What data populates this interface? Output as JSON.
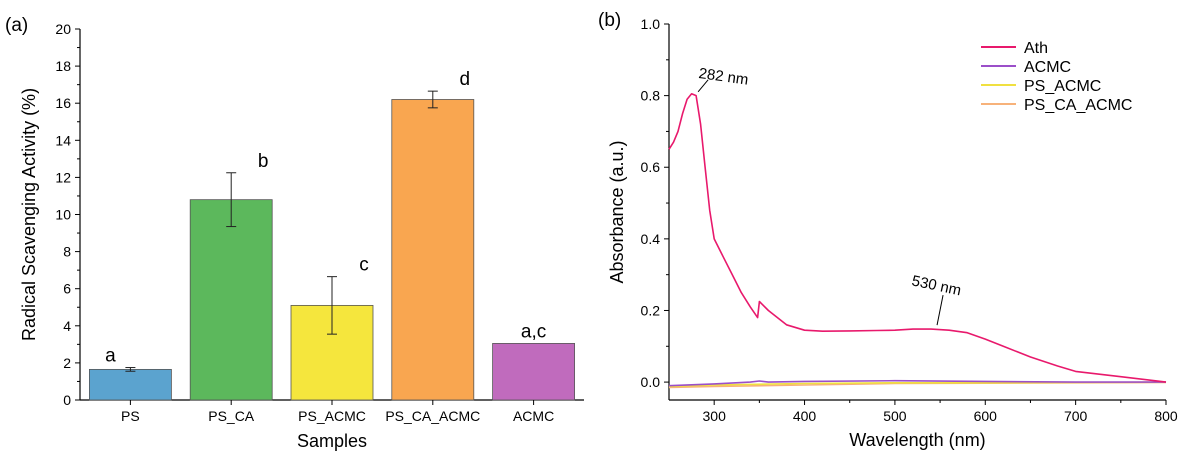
{
  "chart_data": [
    {
      "panel_label": "(a)",
      "type": "bar",
      "xlabel": "Samples",
      "ylabel": "Radical Scavenging Activity (%)",
      "ylim": [
        0,
        20
      ],
      "yticks": [
        0,
        2,
        4,
        6,
        8,
        10,
        12,
        14,
        16,
        18,
        20
      ],
      "categories": [
        "PS",
        "PS_CA",
        "PS_ACMC",
        "PS_CA_ACMC",
        "ACMC"
      ],
      "values": [
        1.65,
        10.8,
        5.1,
        16.2,
        3.05
      ],
      "errors": [
        0.1,
        1.45,
        1.55,
        0.45,
        0.0
      ],
      "significance_letters": [
        "a",
        "b",
        "c",
        "d",
        "a,c"
      ],
      "colors": [
        "#5ba3cf",
        "#5cb85c",
        "#f5e63d",
        "#f9a650",
        "#c06bbd"
      ],
      "grid": false
    },
    {
      "panel_label": "(b)",
      "type": "line",
      "xlabel": "Wavelength (nm)",
      "ylabel": "Absorbance (a.u.)",
      "xlim": [
        250,
        800
      ],
      "ylim": [
        -0.05,
        1.0
      ],
      "xticks": [
        300,
        400,
        500,
        600,
        700,
        800
      ],
      "yticks": [
        0.0,
        0.2,
        0.4,
        0.6,
        0.8,
        1.0
      ],
      "ytick_labels": [
        "0.0",
        "0.2",
        "0.4",
        "0.6",
        "0.8",
        "1.0"
      ],
      "legend_position": "top-right",
      "grid": false,
      "annotations": [
        {
          "text": "282 nm",
          "x": 280,
          "y": 0.805
        },
        {
          "text": "530 nm",
          "x": 540,
          "y": 0.148
        }
      ],
      "series": [
        {
          "name": "Ath",
          "color": "#e8196c",
          "x": [
            250,
            255,
            260,
            265,
            270,
            275,
            280,
            285,
            290,
            295,
            300,
            310,
            320,
            330,
            340,
            348,
            350,
            352,
            360,
            380,
            400,
            420,
            450,
            480,
            500,
            520,
            540,
            560,
            580,
            600,
            620,
            650,
            680,
            700,
            750,
            800
          ],
          "y": [
            0.65,
            0.67,
            0.7,
            0.75,
            0.79,
            0.805,
            0.8,
            0.72,
            0.6,
            0.48,
            0.4,
            0.35,
            0.3,
            0.25,
            0.21,
            0.18,
            0.225,
            0.22,
            0.2,
            0.16,
            0.145,
            0.142,
            0.143,
            0.144,
            0.145,
            0.148,
            0.148,
            0.145,
            0.138,
            0.12,
            0.1,
            0.07,
            0.045,
            0.03,
            0.015,
            0.0
          ]
        },
        {
          "name": "ACMC",
          "color": "#9b4fc9",
          "x": [
            250,
            300,
            340,
            350,
            360,
            400,
            500,
            600,
            700,
            800
          ],
          "y": [
            -0.01,
            -0.005,
            0.0,
            0.003,
            0.0,
            0.002,
            0.004,
            0.002,
            0.0,
            0.0
          ]
        },
        {
          "name": "PS_ACMC",
          "color": "#f0e040",
          "x": [
            250,
            300,
            400,
            500,
            600,
            700,
            800
          ],
          "y": [
            -0.012,
            -0.008,
            -0.004,
            -0.002,
            -0.002,
            -0.001,
            0.0
          ]
        },
        {
          "name": "PS_CA_ACMC",
          "color": "#f7b27a",
          "x": [
            250,
            300,
            400,
            500,
            600,
            700,
            800
          ],
          "y": [
            -0.015,
            -0.012,
            -0.008,
            -0.004,
            -0.003,
            -0.002,
            -0.001
          ]
        }
      ]
    }
  ]
}
